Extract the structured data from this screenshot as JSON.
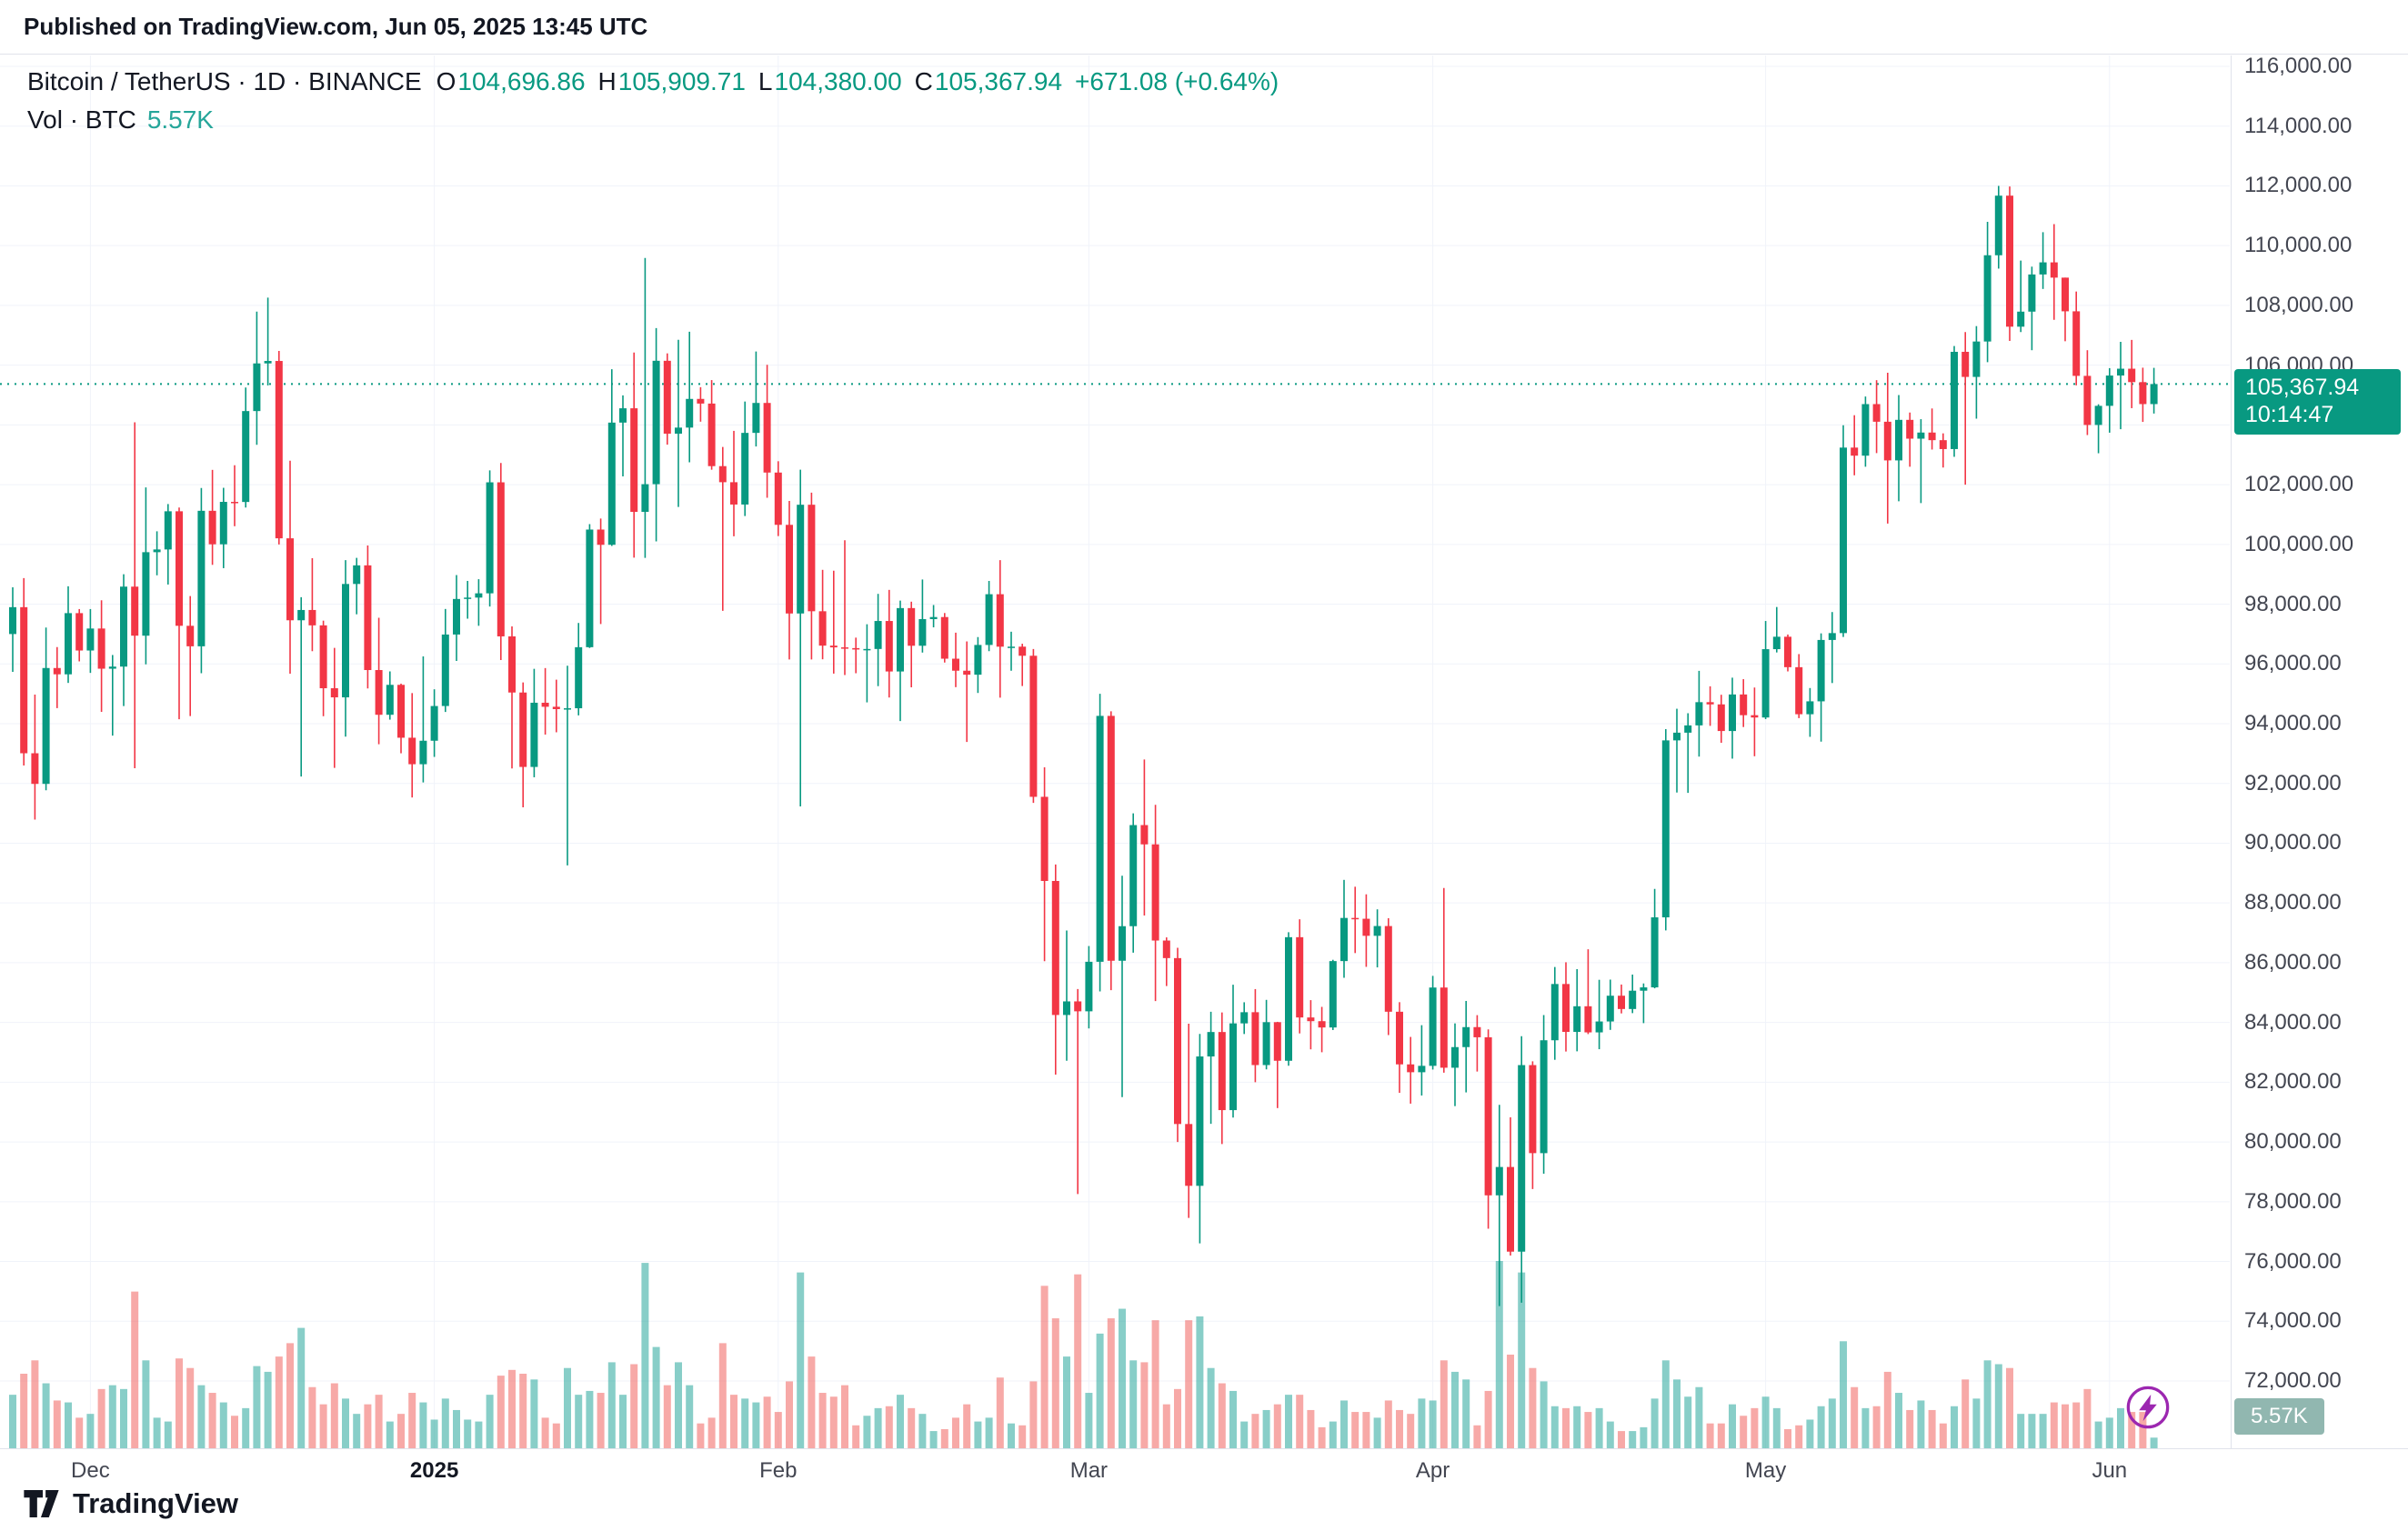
{
  "published_bar": {
    "text": "Published on TradingView.com, Jun 05, 2025 13:45 UTC"
  },
  "legend": {
    "symbol_title": "Bitcoin / TetherUS · 1D · BINANCE",
    "o_label": "O",
    "o_value": "104,696.86",
    "h_label": "H",
    "h_value": "105,909.71",
    "l_label": "L",
    "l_value": "104,380.00",
    "c_label": "C",
    "c_value": "105,367.94",
    "change": "+671.08 (+0.64%)",
    "vol_label": "Vol · BTC",
    "vol_value": "5.57K"
  },
  "price_axis": {
    "labels": [
      "116,000.00",
      "114,000.00",
      "112,000.00",
      "110,000.00",
      "108,000.00",
      "106,000.00",
      "104,000.00",
      "102,000.00",
      "100,000.00",
      "98,000.00",
      "96,000.00",
      "94,000.00",
      "92,000.00",
      "90,000.00",
      "88,000.00",
      "86,000.00",
      "84,000.00",
      "82,000.00",
      "80,000.00",
      "78,000.00",
      "76,000.00",
      "74,000.00",
      "72,000.00"
    ],
    "badge": {
      "price": "105,367.94",
      "countdown": "10:14:47"
    },
    "volume_badge": "5.57K"
  },
  "footer": {
    "brand": "TradingView"
  },
  "colors": {
    "up": "#089981",
    "down": "#f23645",
    "volume_up": "rgba(38,166,154,0.55)",
    "volume_down": "rgba(239,83,80,0.50)",
    "grid": "#f0f3fa",
    "axis_text": "#434651",
    "badge_price_bg": "#089981",
    "badge_volume_bg": "#91b7b0",
    "accent_purple": "#9c27b0"
  },
  "chart_data": {
    "type": "candlestick",
    "title": "Bitcoin / TetherUS",
    "interval": "1D",
    "exchange": "BINANCE",
    "start_date": "2024-11-24",
    "end_date": "2025-06-05",
    "ylim": [
      72000,
      116000
    ],
    "grid_step": 2000,
    "current_price": 105367.94,
    "countdown": "10:14:47",
    "last_volume_kbtc": 5.57,
    "volume_unit": "K BTC",
    "legend_position": "top-left",
    "grid": true,
    "month_marks": [
      {
        "label": "Dec",
        "index": 7,
        "bold": false
      },
      {
        "label": "2025",
        "index": 38,
        "bold": true
      },
      {
        "label": "Feb",
        "index": 69,
        "bold": false
      },
      {
        "label": "Mar",
        "index": 97,
        "bold": false
      },
      {
        "label": "Apr",
        "index": 128,
        "bold": false
      },
      {
        "label": "May",
        "index": 158,
        "bold": false
      },
      {
        "label": "Jun",
        "index": 189,
        "bold": false
      }
    ],
    "open": [
      97000,
      97900,
      93010,
      91985,
      95863,
      95652,
      97700,
      96449,
      97185,
      95840,
      95910,
      98587,
      96945,
      99740,
      99831,
      101109,
      97276,
      96590,
      101125,
      100004,
      101424,
      101420,
      104463,
      106058,
      106140,
      100204,
      97461,
      97805,
      97291,
      95186,
      94881,
      98676,
      99299,
      95795,
      94298,
      95300,
      93530,
      92643,
      93429,
      94591,
      96984,
      98174,
      98220,
      98363,
      102078,
      96922,
      95043,
      92552,
      94701,
      94566,
      94488,
      94516,
      96560,
      100497,
      99987,
      104077,
      104556,
      101089,
      102016,
      106146,
      103706,
      103910,
      104870,
      104714,
      102620,
      102082,
      101335,
      103733,
      104735,
      102405,
      100655,
      97688,
      101328,
      97763,
      96612,
      96554,
      96529,
      96482,
      96500,
      97437,
      95747,
      97869,
      96608,
      97500,
      97569,
      96175,
      95773,
      95639,
      96635,
      98333,
      96577,
      96578,
      96273,
      91552,
      88736,
      84250,
      84705,
      84373,
      86031,
      94261,
      86065,
      87222,
      90606,
      89961,
      86742,
      86154,
      80601,
      78532,
      82862,
      83680,
      81066,
      83969,
      84343,
      82574,
      84010,
      82718,
      86854,
      84167,
      84043,
      83832,
      86054,
      87498,
      87471,
      86900,
      87227,
      84359,
      82597,
      82334,
      82548,
      85169,
      82485,
      83175,
      83844,
      83504,
      78214,
      79163,
      76329,
      82573,
      79626,
      83404,
      85287,
      83684,
      84542,
      83668,
      84033,
      84895,
      84450,
      85063,
      85174,
      87518,
      93441,
      93699,
      93943,
      94720,
      94646,
      93754,
      94978,
      94284,
      94207,
      96494,
      96910,
      95891,
      94316,
      94748,
      96802,
      97032,
      103241,
      102970,
      104696,
      104106,
      102812,
      104169,
      103539,
      103744,
      103489,
      103191,
      106446,
      105606,
      106791,
      109678,
      111673,
      107287,
      107791,
      109035,
      109440,
      108929,
      107802,
      105641,
      103998,
      104638,
      105652,
      105881,
      105432,
      104696.86
    ],
    "high": [
      98564,
      98871,
      94973,
      97219,
      96564,
      98599,
      97836,
      97836,
      98130,
      96299,
      99000,
      104088,
      101908,
      100439,
      101351,
      101235,
      98270,
      101888,
      102495,
      101895,
      102650,
      105250,
      107793,
      108260,
      106477,
      102800,
      98233,
      99540,
      97448,
      96538,
      99472,
      99550,
      99963,
      97544,
      95750,
      95340,
      95024,
      96250,
      95151,
      97839,
      98974,
      98778,
      98836,
      102480,
      102724,
      97256,
      95382,
      95836,
      95861,
      95473,
      95940,
      97371,
      100681,
      100866,
      105865,
      104988,
      106422,
      109588,
      107240,
      106394,
      106850,
      107120,
      105263,
      105500,
      103260,
      103800,
      104782,
      106457,
      106012,
      102784,
      101456,
      102500,
      101732,
      99149,
      99120,
      100138,
      96880,
      97328,
      98345,
      98478,
      98120,
      98083,
      98826,
      97972,
      97704,
      97046,
      96753,
      96899,
      98777,
      99475,
      97078,
      96676,
      96500,
      92540,
      89286,
      87078,
      85120,
      86558,
      95000,
      94416,
      88911,
      91000,
      92800,
      91283,
      86847,
      86500,
      83959,
      83617,
      84358,
      84336,
      85263,
      84676,
      85117,
      84756,
      84021,
      87020,
      87453,
      84747,
      84522,
      86097,
      88772,
      88543,
      88289,
      87786,
      87489,
      84679,
      83516,
      83909,
      85559,
      88500,
      83969,
      84720,
      84245,
      83770,
      81243,
      80823,
      83541,
      82700,
      84247,
      85856,
      86015,
      85785,
      86450,
      85428,
      85434,
      85269,
      85603,
      85306,
      88470,
      93817,
      94500,
      94350,
      95768,
      95251,
      94968,
      95540,
      95490,
      95210,
      97437,
      97905,
      96984,
      96329,
      95193,
      97023,
      97736,
      103990,
      104324,
      104950,
      105497,
      105747,
      104999,
      104414,
      104192,
      104550,
      103717,
      106640,
      107108,
      107307,
      110797,
      112000,
      111980,
      109500,
      109297,
      110450,
      110720,
      108930,
      108464,
      106500,
      104690,
      105900,
      106780,
      106845,
      105915,
      105909.71
    ],
    "low": [
      95734,
      92600,
      90791,
      91772,
      94520,
      95364,
      96085,
      95700,
      94395,
      93600,
      94590,
      92510,
      95987,
      98966,
      98657,
      94150,
      94256,
      95689,
      99316,
      99205,
      100609,
      101234,
      103333,
      105321,
      100000,
      95672,
      92232,
      96426,
      94250,
      92520,
      93568,
      97661,
      95180,
      93310,
      94135,
      93009,
      91530,
      92033,
      92888,
      94392,
      96100,
      97514,
      97276,
      97920,
      96131,
      92500,
      91200,
      92206,
      93635,
      93712,
      89256,
      94278,
      96534,
      97335,
      99950,
      102277,
      99556,
      99550,
      100100,
      103339,
      101252,
      102750,
      104108,
      102500,
      97777,
      100272,
      100950,
      103278,
      101560,
      100279,
      96150,
      91231,
      96150,
      96155,
      95676,
      95628,
      95688,
      94713,
      95256,
      94876,
      94088,
      95217,
      96380,
      97224,
      96046,
      95222,
      93388,
      95028,
      96427,
      94871,
      95772,
      95260,
      91349,
      86050,
      82256,
      82720,
      78258,
      83800,
      85040,
      85081,
      81500,
      86334,
      87579,
      84717,
      85219,
      80000,
      77459,
      76606,
      80607,
      79931,
      80818,
      83613,
      82000,
      82430,
      81134,
      82550,
      83633,
      83100,
      83003,
      83747,
      85495,
      86322,
      85861,
      85843,
      83580,
      81644,
      81283,
      81555,
      82424,
      82320,
      81200,
      81659,
      82357,
      77097,
      74508,
      76198,
      74620,
      78426,
      78936,
      82750,
      83027,
      83034,
      83611,
      83105,
      83751,
      84303,
      84312,
      83977,
      85143,
      87081,
      91696,
      91684,
      92898,
      93927,
      93361,
      92830,
      93888,
      92910,
      94153,
      96384,
      95749,
      94186,
      93560,
      93399,
      95360,
      96903,
      102313,
      102600,
      103056,
      100700,
      101444,
      102600,
      101383,
      103175,
      102573,
      102932,
      102000,
      104209,
      106100,
      109231,
      106812,
      107107,
      106500,
      108550,
      107517,
      106800,
      105324,
      103660,
      103051,
      103740,
      103856,
      104560,
      104100,
      104380
    ],
    "close": [
      97900,
      93010,
      91985,
      95863,
      95652,
      97700,
      96449,
      97185,
      95840,
      95910,
      98587,
      96945,
      99740,
      99831,
      101109,
      97276,
      96590,
      101125,
      100004,
      101424,
      101420,
      104463,
      106058,
      106140,
      100204,
      97461,
      97805,
      97291,
      95186,
      94881,
      98676,
      99299,
      95795,
      94298,
      95300,
      93530,
      92643,
      93429,
      94591,
      96984,
      98174,
      98220,
      98363,
      102078,
      96922,
      95043,
      92552,
      94701,
      94566,
      94488,
      94516,
      96560,
      100497,
      99987,
      104077,
      104556,
      101089,
      102016,
      106146,
      103706,
      103910,
      104870,
      104714,
      102620,
      102082,
      101335,
      103733,
      104735,
      102405,
      100655,
      97688,
      101328,
      97763,
      96612,
      96554,
      96529,
      96482,
      96500,
      97437,
      95747,
      97869,
      96608,
      97500,
      97569,
      96175,
      95773,
      95639,
      96635,
      98333,
      96577,
      96578,
      96273,
      91552,
      88736,
      84250,
      84705,
      84373,
      86031,
      94261,
      86065,
      87222,
      90606,
      89961,
      86742,
      86154,
      80601,
      78532,
      82862,
      83680,
      81066,
      83969,
      84343,
      82574,
      84010,
      82718,
      86854,
      84167,
      84043,
      83832,
      86054,
      87498,
      87471,
      86900,
      87227,
      84359,
      82597,
      82334,
      82548,
      85169,
      82485,
      83175,
      83844,
      83504,
      78214,
      79163,
      76329,
      82573,
      79626,
      83404,
      85287,
      83684,
      84542,
      83668,
      84033,
      84895,
      84450,
      85063,
      85174,
      87518,
      93441,
      93699,
      93943,
      94720,
      94646,
      93754,
      94978,
      94284,
      94207,
      96494,
      96910,
      95891,
      94316,
      94748,
      96802,
      97032,
      103241,
      102970,
      104696,
      104106,
      102812,
      104169,
      103539,
      103744,
      103489,
      103191,
      106446,
      105606,
      106791,
      109678,
      111673,
      107287,
      107791,
      109035,
      109440,
      108929,
      107802,
      105641,
      103998,
      104638,
      105652,
      105881,
      105432,
      104696.86,
      105367.94
    ],
    "volume_kbtc": [
      28,
      39,
      46,
      34,
      25,
      24,
      16,
      18,
      31,
      33,
      31,
      82,
      46,
      16,
      14,
      47,
      42,
      33,
      29,
      24,
      17,
      21,
      43,
      40,
      48,
      55,
      63,
      32,
      23,
      34,
      26,
      18,
      23,
      28,
      14,
      18,
      29,
      24,
      15,
      26,
      20,
      15,
      14,
      28,
      38,
      41,
      39,
      36,
      16,
      13,
      42,
      28,
      30,
      29,
      45,
      28,
      44,
      97,
      53,
      33,
      45,
      33,
      13,
      16,
      55,
      28,
      26,
      24,
      27,
      19,
      35,
      92,
      48,
      29,
      27,
      33,
      12,
      17,
      21,
      22,
      28,
      21,
      18,
      9,
      10,
      16,
      23,
      14,
      16,
      37,
      13,
      12,
      35,
      85,
      68,
      48,
      91,
      29,
      60,
      68,
      73,
      46,
      45,
      67,
      23,
      31,
      67,
      69,
      42,
      34,
      30,
      14,
      18,
      20,
      23,
      28,
      28,
      20,
      11,
      14,
      25,
      19,
      19,
      16,
      25,
      20,
      18,
      26,
      25,
      46,
      40,
      36,
      12,
      30,
      98,
      49,
      92,
      42,
      35,
      22,
      21,
      22,
      19,
      21,
      14,
      9,
      9,
      11,
      26,
      46,
      36,
      27,
      32,
      13,
      13,
      23,
      17,
      21,
      27,
      21,
      10,
      12,
      15,
      22,
      26,
      56,
      32,
      21,
      22,
      40,
      29,
      20,
      25,
      20,
      13,
      22,
      36,
      26,
      46,
      44,
      42,
      18,
      18,
      18,
      24,
      23,
      24,
      31,
      14,
      16,
      21,
      19,
      19,
      5.57
    ]
  }
}
